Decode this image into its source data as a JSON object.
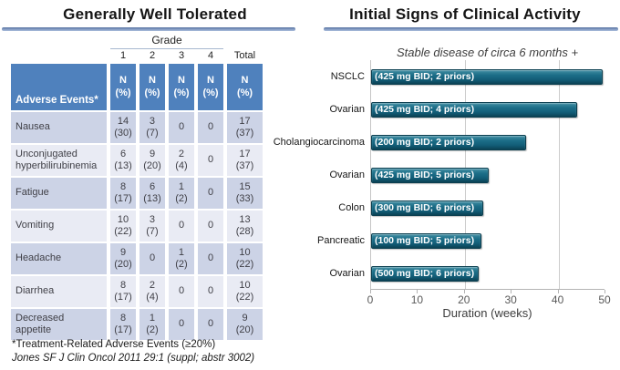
{
  "left_panel": {
    "title": "Generally Well Tolerated",
    "table": {
      "grade_header": "Grade",
      "grade_cols": [
        "1",
        "2",
        "3",
        "4"
      ],
      "total_col": "Total",
      "first_header": "Adverse Events*",
      "n_pct": "N\n(%)",
      "rows": [
        {
          "label": "Nausea",
          "cells": [
            "14\n(30)",
            "3\n(7)",
            "0",
            "0",
            "17\n(37)"
          ]
        },
        {
          "label": "Unconjugated\nhyperbilirubinemia",
          "cells": [
            "6\n(13)",
            "9\n(20)",
            "2\n(4)",
            "0",
            "17\n(37)"
          ]
        },
        {
          "label": "Fatigue",
          "cells": [
            "8\n(17)",
            "6\n(13)",
            "1\n(2)",
            "0",
            "15\n(33)"
          ]
        },
        {
          "label": "Vomiting",
          "cells": [
            "10\n(22)",
            "3\n(7)",
            "0",
            "0",
            "13\n(28)"
          ]
        },
        {
          "label": "Headache",
          "cells": [
            "9\n(20)",
            "0",
            "1\n(2)",
            "0",
            "10\n(22)"
          ]
        },
        {
          "label": "Diarrhea",
          "cells": [
            "8\n(17)",
            "2\n(4)",
            "0",
            "0",
            "10\n(22)"
          ]
        },
        {
          "label": "Decreased\nappetite",
          "cells": [
            "8\n(17)",
            "1\n(2)",
            "0",
            "0",
            "9\n(20)"
          ]
        }
      ]
    },
    "footnote": "*Treatment-Related Adverse Events (≥20%)",
    "citation": "Jones SF J Clin Oncol 2011 29:1 (suppl; abstr 3002)"
  },
  "right_panel": {
    "title": "Initial Signs of Clinical Activity"
  },
  "chart_data": {
    "type": "bar",
    "orientation": "horizontal",
    "title": "Stable disease of circa 6 months +",
    "categories": [
      "NSCLC",
      "Ovarian",
      "Cholangiocarcinoma",
      "Ovarian",
      "Colon",
      "Pancreatic",
      "Ovarian"
    ],
    "values": [
      49.5,
      44,
      33,
      25,
      24,
      23.5,
      23
    ],
    "bar_labels": [
      "(425 mg BID; 2 priors)",
      "(425 mg BID; 4 priors)",
      "(200 mg BID; 2 priors)",
      "(425 mg BID; 5 priors)",
      "(300 mg BID; 6 priors)",
      "(100 mg BID; 5 priors)",
      "(500 mg BID; 6 priors)"
    ],
    "xlabel": "Duration (weeks)",
    "xlim": [
      0,
      50
    ],
    "xticks": [
      0,
      10,
      20,
      30,
      40,
      50
    ],
    "gridlines": [
      20,
      40
    ],
    "legend_position": "none",
    "bar_color": "#15607A"
  },
  "colors": {
    "header_blue": "#4F81BD",
    "row_dark": "#CCD3E6",
    "row_light": "#E9EBF4",
    "title_rule": "#7E96BF",
    "bar_teal": "#15607A"
  }
}
